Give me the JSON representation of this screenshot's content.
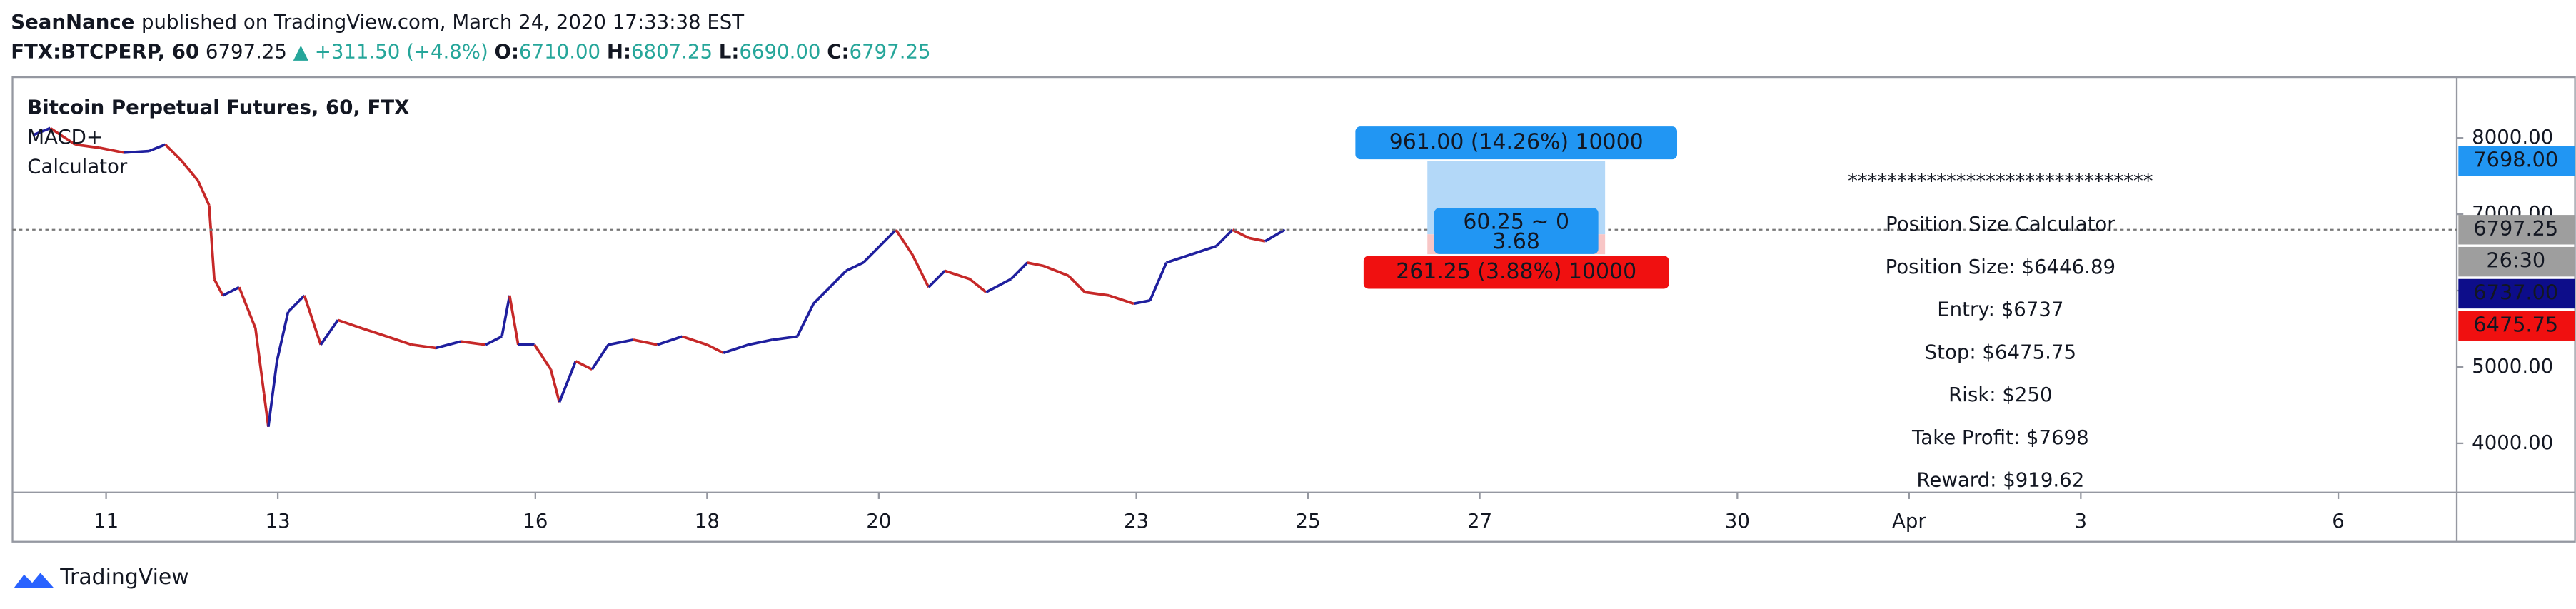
{
  "header": {
    "author": "SeanNance",
    "published": "published on TradingView.com, March 24, 2020 17:33:38 EST"
  },
  "symbol_bar": {
    "symbol": "FTX:BTCPERP, 60",
    "last": "6797.25",
    "change": "▲ +311.50 (+4.8%)",
    "o_label": "O:",
    "o": "6710.00",
    "h_label": "H:",
    "h": "6807.25",
    "l_label": "L:",
    "l": "6690.00",
    "c_label": "C:",
    "c": "6797.25"
  },
  "chart_data": {
    "type": "line",
    "title": "Bitcoin Perpetual Futures, 60, FTX",
    "indicators": [
      "MACD+",
      "Calculator"
    ],
    "up_color": "#1f1f9e",
    "down_color": "#c62828",
    "x": [
      10.16,
      10.35,
      10.64,
      10.92,
      11.21,
      11.5,
      11.69,
      11.88,
      12.07,
      12.2,
      12.26,
      12.36,
      12.55,
      12.74,
      12.84,
      12.89,
      12.99,
      13.12,
      13.31,
      13.5,
      13.7,
      13.98,
      14.27,
      14.56,
      14.84,
      15.13,
      15.42,
      15.61,
      15.7,
      15.8,
      15.99,
      16.18,
      16.28,
      16.47,
      16.66,
      16.85,
      17.14,
      17.42,
      17.71,
      18.0,
      18.19,
      18.48,
      18.76,
      19.05,
      19.24,
      19.43,
      19.62,
      19.82,
      20.01,
      20.2,
      20.39,
      20.58,
      20.77,
      21.06,
      21.25,
      21.54,
      21.73,
      21.92,
      22.21,
      22.4,
      22.68,
      22.97,
      23.16,
      23.35,
      23.64,
      23.93,
      24.12,
      24.31,
      24.5,
      24.73
    ],
    "values": [
      8043,
      8129,
      7914,
      7871,
      7807,
      7828,
      7914,
      7699,
      7441,
      7118,
      6151,
      5936,
      6044,
      5506,
      4646,
      4216,
      5076,
      5721,
      5936,
      5291,
      5614,
      5506,
      5399,
      5291,
      5248,
      5334,
      5291,
      5399,
      5936,
      5291,
      5291,
      4968,
      4538,
      5076,
      4968,
      5291,
      5356,
      5291,
      5399,
      5291,
      5184,
      5291,
      5356,
      5399,
      5829,
      6044,
      6259,
      6366,
      6581,
      6796,
      6474,
      6044,
      6259,
      6151,
      5979,
      6151,
      6366,
      6323,
      6194,
      5979,
      5936,
      5829,
      5871,
      6366,
      6474,
      6581,
      6796,
      6689,
      6646,
      6797
    ],
    "xlim": [
      9.91,
      38.38
    ],
    "xticks": [
      11,
      13,
      16,
      18,
      20,
      23,
      25,
      27,
      30,
      {
        "value": 32,
        "label": "Apr"
      },
      {
        "value": 34,
        "label": "3"
      },
      {
        "value": 37,
        "label": "6"
      }
    ],
    "ylim": [
      3356,
      8796
    ],
    "yticks": [
      {
        "value": 4000,
        "label": "4000.00"
      },
      {
        "value": 5000,
        "label": "5000.00"
      },
      {
        "value": 6000,
        "label": "6000.00"
      },
      {
        "value": 7000,
        "label": "7000.00"
      },
      {
        "value": 8000,
        "label": "8000.00"
      }
    ],
    "last_price": 6797.25,
    "price_markers": [
      {
        "value": 7698,
        "label": "7698.00",
        "color": "#2196f3"
      },
      {
        "value": 6797.25,
        "label": "6797.25",
        "color": "#9e9e9e"
      },
      {
        "label": "26:30",
        "color": "#9e9e9e"
      },
      {
        "value": 6737,
        "label": "6737.00",
        "color": "#0d0d8a"
      },
      {
        "value": 6475.75,
        "label": "6475.75",
        "color": "#f01010"
      }
    ],
    "position": {
      "start": 26.39,
      "end": 28.46,
      "target": 7698,
      "entry": 6737,
      "stop": 6475.75,
      "target_label": "961.00 (14.26%) 10000",
      "entry_label": "60.25 ~ 0",
      "entry_sublabel": "3.68",
      "stop_label": "261.25 (3.88%) 10000"
    },
    "calculator_lines": [
      "*******************************",
      "Position Size Calculator",
      "Position Size: $6446.89",
      "Entry: $6737",
      "Stop: $6475.75",
      "Risk: $250",
      "Take Profit: $7698",
      "Reward: $919.62"
    ]
  },
  "footer": {
    "brand": "TradingView"
  }
}
